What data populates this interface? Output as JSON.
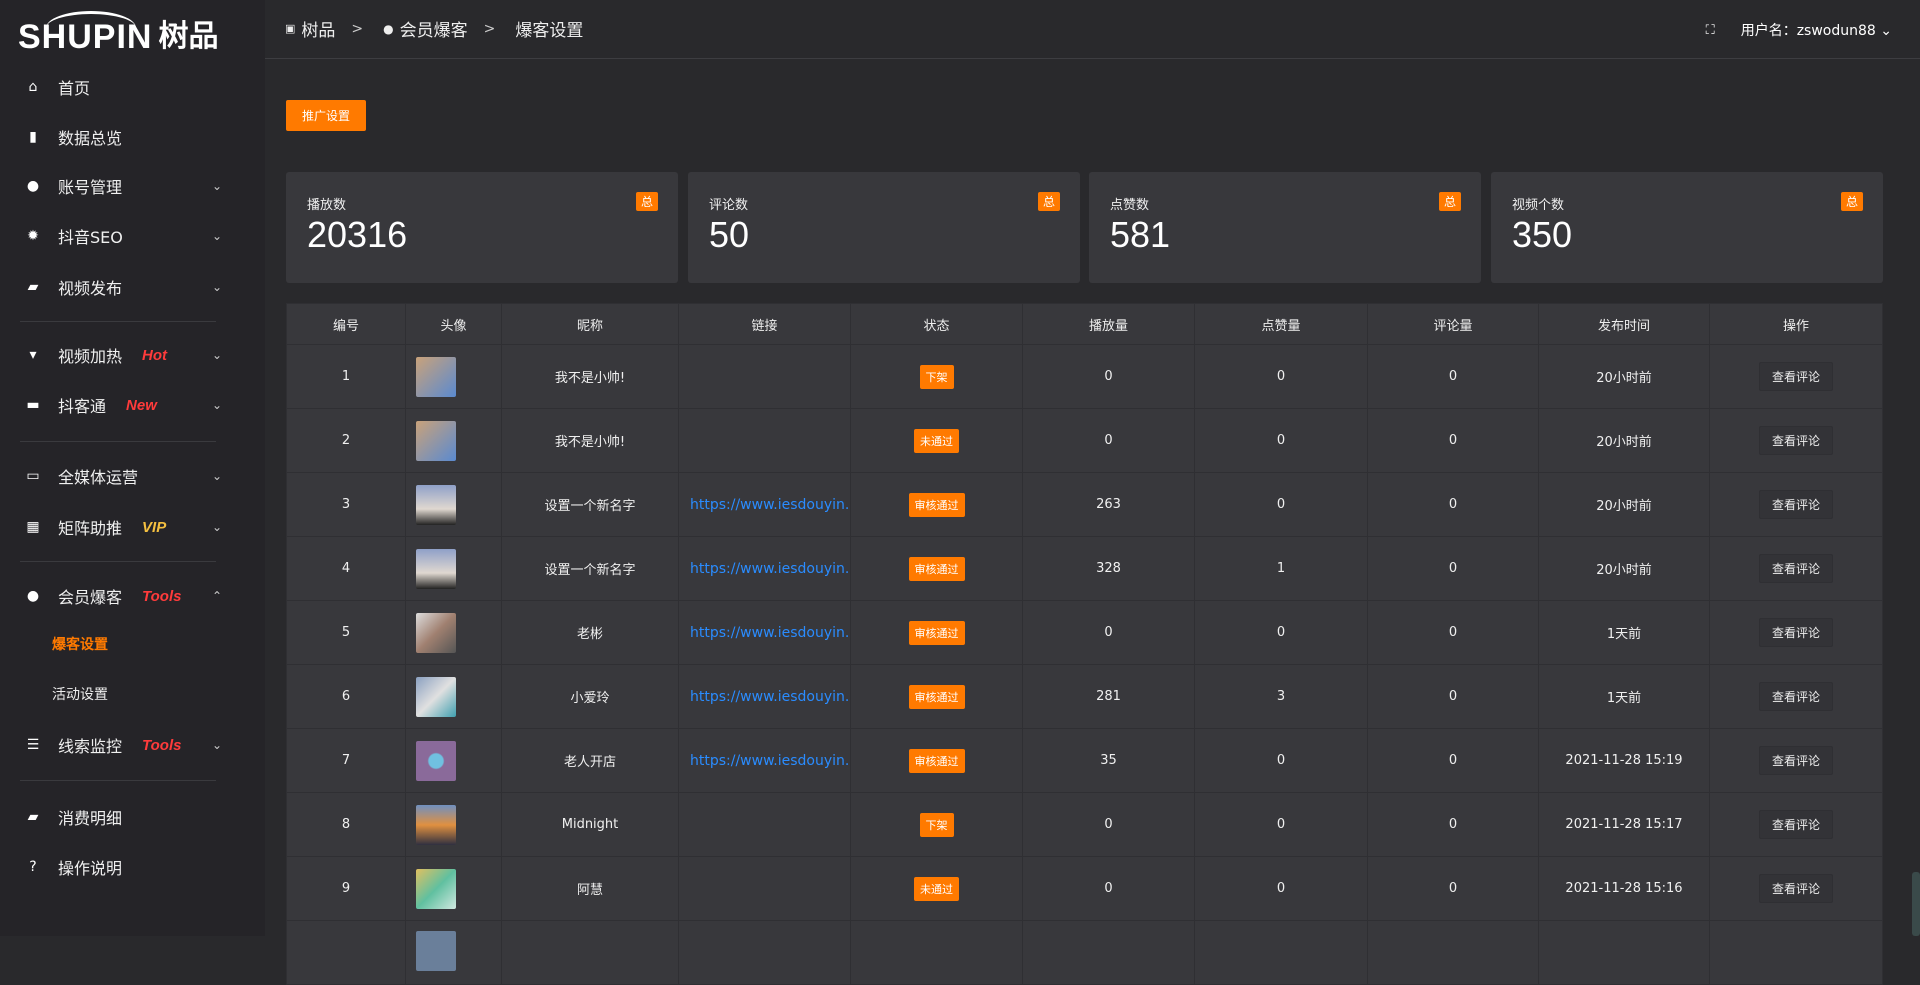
{
  "brand": {
    "logo_en": "SHUPIN",
    "logo_cn": "树品"
  },
  "sidebar": {
    "items": [
      {
        "label": "首页",
        "icon": "home-icon",
        "glyph": "⌂"
      },
      {
        "label": "数据总览",
        "icon": "bar-chart-icon",
        "glyph": "▮"
      },
      {
        "label": "账号管理",
        "icon": "user-icon",
        "glyph": "●",
        "chevron": "⌄"
      },
      {
        "label": "抖音SEO",
        "icon": "gear-icon",
        "glyph": "✹",
        "chevron": "⌄"
      },
      {
        "label": "视频发布",
        "icon": "camera-icon",
        "glyph": "▰",
        "chevron": "⌄"
      },
      {
        "label": "视频加热",
        "icon": "billboard-icon",
        "glyph": "▾",
        "tag": "Hot",
        "chevron": "⌄"
      },
      {
        "label": "抖客通",
        "icon": "chat-icon",
        "glyph": "▬",
        "tag": "New",
        "chevron": "⌄"
      },
      {
        "label": "全媒体运营",
        "icon": "monitor-icon",
        "glyph": "▭",
        "chevron": "⌄"
      },
      {
        "label": "矩阵助推",
        "icon": "grid-icon",
        "glyph": "▦",
        "tag": "VIP",
        "chevron": "⌄"
      },
      {
        "label": "会员爆客",
        "icon": "user-icon",
        "glyph": "●",
        "tag": "Tools",
        "chevron": "⌃"
      },
      {
        "label": "线索监控",
        "icon": "sliders-icon",
        "glyph": "☰",
        "tag": "Tools",
        "chevron": "⌄"
      },
      {
        "label": "消费明细",
        "icon": "wallet-icon",
        "glyph": "▰"
      },
      {
        "label": "操作说明",
        "icon": "help-icon",
        "glyph": "?"
      }
    ],
    "sub_items": [
      {
        "label": "爆客设置",
        "active": true
      },
      {
        "label": "活动设置",
        "active": false
      }
    ]
  },
  "colors": {
    "accent": "#ff7a00",
    "hot": "#ff3b3b",
    "vip": "#f5c040",
    "link": "#2a8cff"
  },
  "breadcrumb": [
    "树品",
    "会员爆客",
    "爆客设置"
  ],
  "header": {
    "username_label": "用户名：zswodun88"
  },
  "toolbar": {
    "promo_label": "推广设置"
  },
  "stats": [
    {
      "label": "播放数",
      "value": "20316",
      "badge": "总"
    },
    {
      "label": "评论数",
      "value": "50",
      "badge": "总"
    },
    {
      "label": "点赞数",
      "value": "581",
      "badge": "总"
    },
    {
      "label": "视频个数",
      "value": "350",
      "badge": "总"
    }
  ],
  "table": {
    "columns": [
      "编号",
      "头像",
      "昵称",
      "链接",
      "状态",
      "播放量",
      "点赞量",
      "评论量",
      "发布时间",
      "操作"
    ],
    "action_label": "查看评论",
    "rows": [
      {
        "id": "1",
        "avatar": "linear-gradient(135deg,#c9a27a,#5a8ad0)",
        "name": "我不是小帅!",
        "link": "",
        "status": "下架",
        "plays": "0",
        "likes": "0",
        "comments": "0",
        "time": "20小时前"
      },
      {
        "id": "2",
        "avatar": "linear-gradient(135deg,#c9a27a,#5a8ad0)",
        "name": "我不是小帅!",
        "link": "",
        "status": "未通过",
        "plays": "0",
        "likes": "0",
        "comments": "0",
        "time": "20小时前"
      },
      {
        "id": "3",
        "avatar": "linear-gradient(180deg,#8fa0c8,#e0d8d0 60%,#222)",
        "name": "设置一个新名字",
        "link": "https://www.iesdouyin.c",
        "status": "审核通过",
        "plays": "263",
        "likes": "0",
        "comments": "0",
        "time": "20小时前"
      },
      {
        "id": "4",
        "avatar": "linear-gradient(180deg,#8fa0c8,#e0d8d0 60%,#222)",
        "name": "设置一个新名字",
        "link": "https://www.iesdouyin.c",
        "status": "审核通过",
        "plays": "328",
        "likes": "1",
        "comments": "0",
        "time": "20小时前"
      },
      {
        "id": "5",
        "avatar": "linear-gradient(135deg,#ddd,#a08070,#555)",
        "name": "老彬",
        "link": "https://www.iesdouyin.c",
        "status": "审核通过",
        "plays": "0",
        "likes": "0",
        "comments": "0",
        "time": "1天前"
      },
      {
        "id": "6",
        "avatar": "linear-gradient(135deg,#8aa0c0,#e0e0e0,#40a0b0)",
        "name": "小爱玲",
        "link": "https://www.iesdouyin.c",
        "status": "审核通过",
        "plays": "281",
        "likes": "3",
        "comments": "0",
        "time": "1天前"
      },
      {
        "id": "7",
        "avatar": "radial-gradient(circle,#70c0e0 25%,#8a6a9a 30%)",
        "name": "老人开店",
        "link": "https://www.iesdouyin.c",
        "status": "审核通过",
        "plays": "35",
        "likes": "0",
        "comments": "0",
        "time": "2021-11-28 15:19"
      },
      {
        "id": "8",
        "avatar": "linear-gradient(180deg,#7090c0,#e09040 50%,#303040)",
        "name": "Midnight",
        "link": "",
        "status": "下架",
        "plays": "0",
        "likes": "0",
        "comments": "0",
        "time": "2021-11-28 15:17"
      },
      {
        "id": "9",
        "avatar": "linear-gradient(135deg,#e0c060,#60c0a0,#d0e8e0)",
        "name": "阿慧",
        "link": "",
        "status": "未通过",
        "plays": "0",
        "likes": "0",
        "comments": "0",
        "time": "2021-11-28 15:16"
      }
    ]
  }
}
